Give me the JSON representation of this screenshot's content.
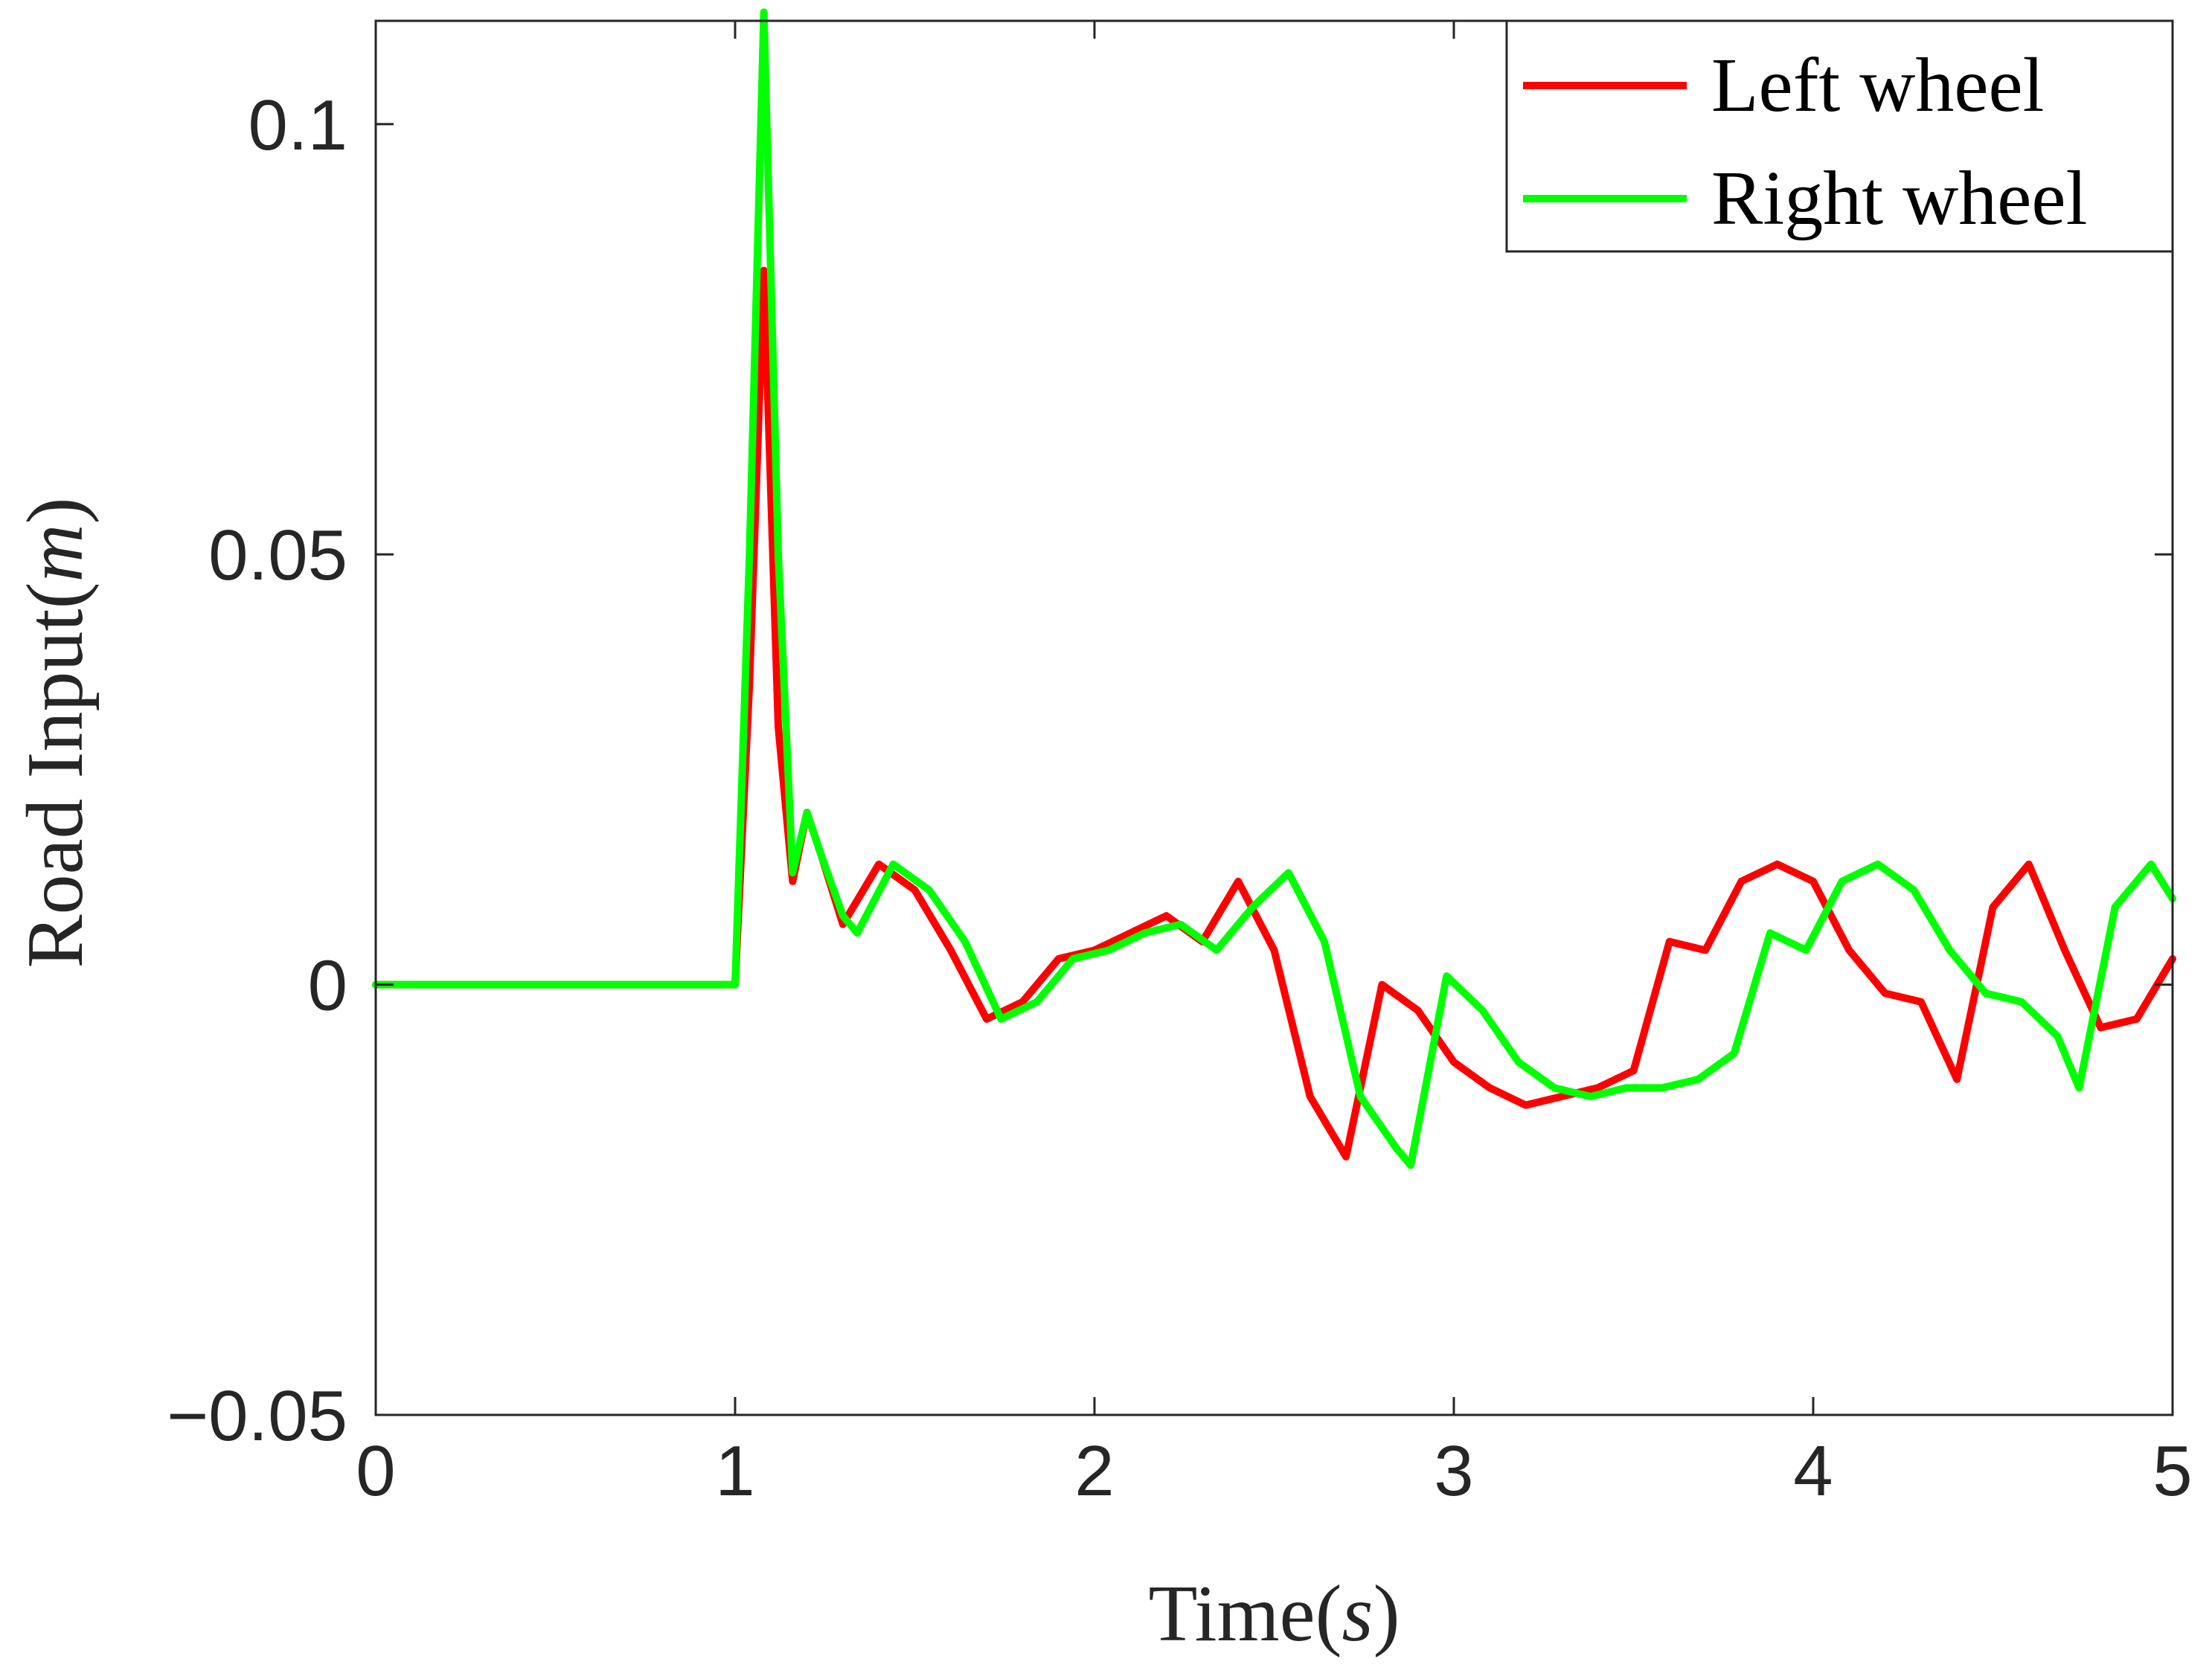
{
  "chart_data": {
    "type": "line",
    "xlabel": "Time",
    "xlabel_unit": "s",
    "ylabel": "Road Input",
    "ylabel_unit": "m",
    "xlim": [
      0,
      5
    ],
    "ylim": [
      -0.05,
      0.112
    ],
    "xticks": [
      0,
      1,
      2,
      3,
      4,
      5
    ],
    "xtick_labels": [
      "0",
      "1",
      "2",
      "3",
      "4",
      "5"
    ],
    "yticks": [
      -0.05,
      0,
      0.05,
      0.1
    ],
    "ytick_labels": [
      "−0.05",
      "0",
      "0.05",
      "0.1"
    ],
    "grid": false,
    "box": true,
    "legend_position": "top-right",
    "series": [
      {
        "name": "Left wheel",
        "color": "#ff0000",
        "x": [
          0,
          1.0,
          1.04,
          1.08,
          1.12,
          1.16,
          1.2,
          1.24,
          1.3,
          1.4,
          1.5,
          1.6,
          1.7,
          1.8,
          1.9,
          2.0,
          2.1,
          2.2,
          2.3,
          2.4,
          2.5,
          2.6,
          2.7,
          2.8,
          2.9,
          3.0,
          3.1,
          3.2,
          3.3,
          3.4,
          3.5,
          3.6,
          3.7,
          3.8,
          3.9,
          4.0,
          4.1,
          4.2,
          4.3,
          4.4,
          4.5,
          4.6,
          4.7,
          4.8,
          4.9,
          5.0
        ],
        "y": [
          0,
          0,
          0.035,
          0.083,
          0.03,
          0.012,
          0.02,
          0.015,
          0.007,
          0.014,
          0.011,
          0.004,
          -0.004,
          -0.002,
          0.003,
          0.004,
          0.006,
          0.008,
          0.005,
          0.012,
          0.004,
          -0.013,
          -0.02,
          0.0,
          -0.003,
          -0.009,
          -0.012,
          -0.014,
          -0.013,
          -0.012,
          -0.01,
          0.005,
          0.004,
          0.012,
          0.014,
          0.012,
          0.004,
          -0.001,
          -0.002,
          -0.011,
          0.009,
          0.014,
          0.004,
          -0.005,
          -0.004,
          0.003
        ]
      },
      {
        "name": "Right wheel",
        "color": "#00ff00",
        "x": [
          0,
          1.0,
          1.04,
          1.08,
          1.12,
          1.16,
          1.2,
          1.24,
          1.3,
          1.34,
          1.44,
          1.54,
          1.64,
          1.74,
          1.84,
          1.94,
          2.04,
          2.14,
          2.24,
          2.34,
          2.44,
          2.54,
          2.64,
          2.74,
          2.84,
          2.88,
          2.98,
          3.08,
          3.18,
          3.28,
          3.38,
          3.48,
          3.58,
          3.68,
          3.78,
          3.88,
          3.98,
          4.08,
          4.18,
          4.28,
          4.38,
          4.48,
          4.58,
          4.68,
          4.74,
          4.84,
          4.94,
          5.0
        ],
        "y": [
          0,
          0,
          0.05,
          0.113,
          0.05,
          0.013,
          0.02,
          0.015,
          0.008,
          0.006,
          0.014,
          0.011,
          0.005,
          -0.004,
          -0.002,
          0.003,
          0.004,
          0.006,
          0.007,
          0.004,
          0.009,
          0.013,
          0.005,
          -0.013,
          -0.019,
          -0.021,
          0.001,
          -0.003,
          -0.009,
          -0.012,
          -0.013,
          -0.012,
          -0.012,
          -0.011,
          -0.008,
          0.006,
          0.004,
          0.012,
          0.014,
          0.011,
          0.004,
          -0.001,
          -0.002,
          -0.006,
          -0.012,
          0.009,
          0.014,
          0.01
        ]
      }
    ]
  }
}
